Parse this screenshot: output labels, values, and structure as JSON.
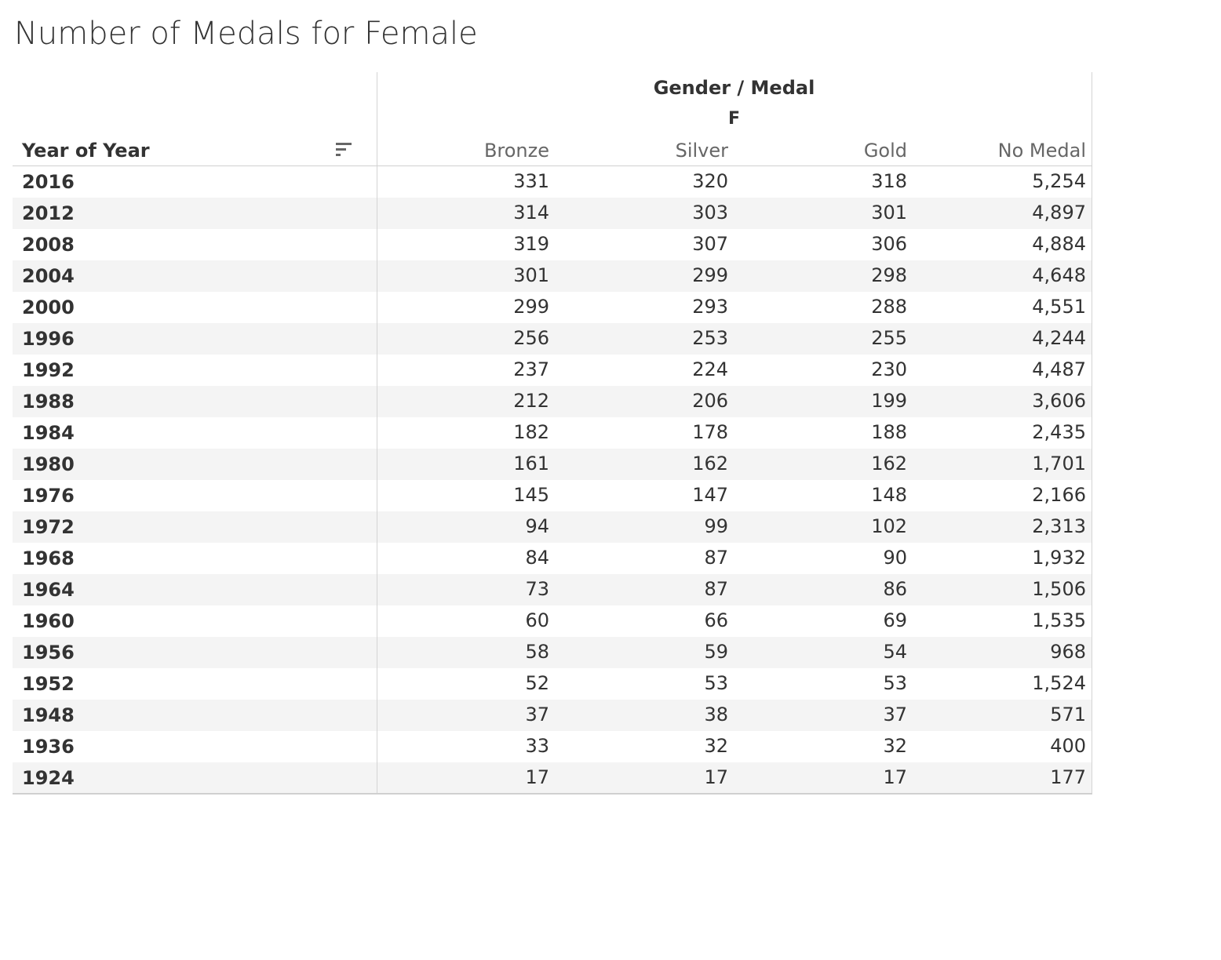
{
  "title": "Number of Medals for Female",
  "header": {
    "group_label": "Gender / Medal",
    "gender": "F",
    "row_header": "Year of Year",
    "columns": [
      "Bronze",
      "Silver",
      "Gold",
      "No Medal"
    ]
  },
  "colors": {
    "alt_row": "#f4f4f4",
    "text": "#333333",
    "muted": "#666666",
    "grid": "#d0d0d0"
  },
  "chart_data": {
    "type": "table",
    "title": "Number of Medals for Female",
    "column_group": "Gender / Medal",
    "gender": "F",
    "row_label": "Year of Year",
    "columns": [
      "Bronze",
      "Silver",
      "Gold",
      "No Medal"
    ],
    "rows": [
      {
        "year": "2016",
        "values": [
          "331",
          "320",
          "318",
          "5,254"
        ]
      },
      {
        "year": "2012",
        "values": [
          "314",
          "303",
          "301",
          "4,897"
        ]
      },
      {
        "year": "2008",
        "values": [
          "319",
          "307",
          "306",
          "4,884"
        ]
      },
      {
        "year": "2004",
        "values": [
          "301",
          "299",
          "298",
          "4,648"
        ]
      },
      {
        "year": "2000",
        "values": [
          "299",
          "293",
          "288",
          "4,551"
        ]
      },
      {
        "year": "1996",
        "values": [
          "256",
          "253",
          "255",
          "4,244"
        ]
      },
      {
        "year": "1992",
        "values": [
          "237",
          "224",
          "230",
          "4,487"
        ]
      },
      {
        "year": "1988",
        "values": [
          "212",
          "206",
          "199",
          "3,606"
        ]
      },
      {
        "year": "1984",
        "values": [
          "182",
          "178",
          "188",
          "2,435"
        ]
      },
      {
        "year": "1980",
        "values": [
          "161",
          "162",
          "162",
          "1,701"
        ]
      },
      {
        "year": "1976",
        "values": [
          "145",
          "147",
          "148",
          "2,166"
        ]
      },
      {
        "year": "1972",
        "values": [
          "94",
          "99",
          "102",
          "2,313"
        ]
      },
      {
        "year": "1968",
        "values": [
          "84",
          "87",
          "90",
          "1,932"
        ]
      },
      {
        "year": "1964",
        "values": [
          "73",
          "87",
          "86",
          "1,506"
        ]
      },
      {
        "year": "1960",
        "values": [
          "60",
          "66",
          "69",
          "1,535"
        ]
      },
      {
        "year": "1956",
        "values": [
          "58",
          "59",
          "54",
          "968"
        ]
      },
      {
        "year": "1952",
        "values": [
          "52",
          "53",
          "53",
          "1,524"
        ]
      },
      {
        "year": "1948",
        "values": [
          "37",
          "38",
          "37",
          "571"
        ]
      },
      {
        "year": "1936",
        "values": [
          "33",
          "32",
          "32",
          "400"
        ]
      },
      {
        "year": "1924",
        "values": [
          "17",
          "17",
          "17",
          "177"
        ]
      }
    ]
  }
}
